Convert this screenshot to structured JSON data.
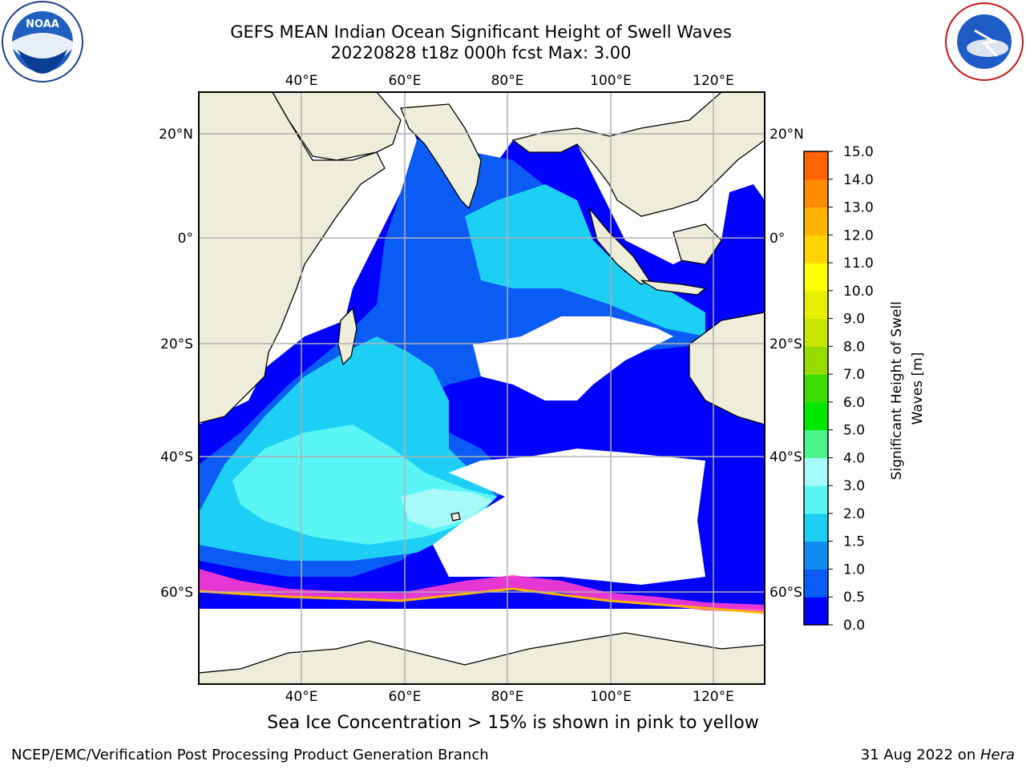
{
  "title_line1": "GEFS MEAN Indian Ocean Significant Height of Swell Waves",
  "title_line2": "20220828 t18z 000h fcst   Max: 3.00",
  "lon_ticks": [
    "40°E",
    "60°E",
    "80°E",
    "100°E",
    "120°E"
  ],
  "lat_ticks_left": [
    "20°N",
    "0°",
    "20°S",
    "40°S",
    "60°S"
  ],
  "lat_ticks_right": [
    "20°N",
    "0°",
    "20°S",
    "40°S",
    "60°S"
  ],
  "colorbar": {
    "label": "Significant Height of Swell Waves [m]",
    "ticks": [
      "0.0",
      "0.5",
      "1.0",
      "1.5",
      "2.0",
      "3.0",
      "4.0",
      "5.0",
      "6.0",
      "7.0",
      "8.0",
      "9.0",
      "10.0",
      "11.0",
      "12.0",
      "13.0",
      "14.0",
      "15.0"
    ],
    "colors": [
      "#0000ff",
      "#0a5cf5",
      "#0f8cf0",
      "#1ecff5",
      "#5af5f5",
      "#a6fafa",
      "#4cf58c",
      "#00e800",
      "#3cdc00",
      "#96dc00",
      "#c8e600",
      "#e6f000",
      "#ffff00",
      "#ffd200",
      "#ffb400",
      "#ff8c00",
      "#ff6400",
      "#ff3c00",
      "#ff0000"
    ]
  },
  "sea_ice_note": "Sea Ice Concentration > 15% is shown in pink to yellow",
  "credit": "NCEP/EMC/Verification Post Processing Product Generation Branch",
  "date_text": "31 Aug 2022 on ",
  "date_machine": "Hera",
  "logos": {
    "left": "NOAA",
    "right": "NATIONAL WEATHER SERVICE"
  }
}
